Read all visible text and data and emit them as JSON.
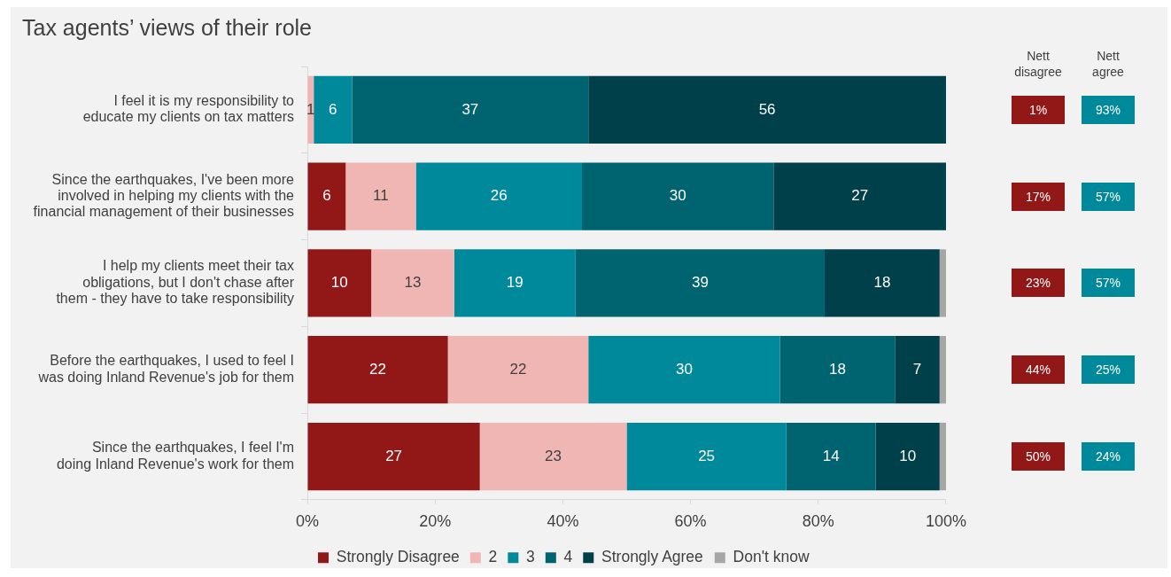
{
  "chart_data": {
    "type": "bar",
    "orientation": "horizontal",
    "stacked": true,
    "title": "Tax agents’ views of their role",
    "categories": [
      "I feel it is my responsibility to educate my clients on tax matters",
      "Since the earthquakes, I've been more involved in helping my clients with the financial management of their businesses",
      "I help my clients meet their tax obligations, but I don't chase after them - they have to take responsibility",
      "Before the earthquakes, I used to feel I was doing Inland Revenue's job for them",
      "Since the earthquakes, I feel I'm doing Inland Revenue's work for them"
    ],
    "series": [
      {
        "name": "Strongly Disagree",
        "color": "#921717",
        "values": [
          0,
          6,
          10,
          22,
          27
        ],
        "value_labels": [
          null,
          "6",
          "10",
          "22",
          "27"
        ]
      },
      {
        "name": "2",
        "color": "#f0b6b4",
        "values": [
          1,
          11,
          13,
          22,
          23
        ],
        "value_labels": [
          "1",
          "11",
          "13",
          "22",
          "23"
        ]
      },
      {
        "name": "3",
        "color": "#00899a",
        "values": [
          6,
          26,
          19,
          30,
          25
        ],
        "value_labels": [
          "6",
          "26",
          "19",
          "30",
          "25"
        ]
      },
      {
        "name": "4",
        "color": "#006470",
        "values": [
          37,
          30,
          39,
          18,
          14
        ],
        "value_labels": [
          "37",
          "30",
          "39",
          "18",
          "14"
        ]
      },
      {
        "name": "Strongly Agree",
        "color": "#00404a",
        "values": [
          56,
          27,
          18,
          7,
          10
        ],
        "value_labels": [
          "56",
          "27",
          "18",
          "7",
          "10"
        ]
      },
      {
        "name": "Don't know",
        "color": "#a6a6a6",
        "values": [
          0,
          0,
          1,
          1,
          1
        ],
        "value_labels": [
          null,
          null,
          null,
          null,
          null
        ]
      }
    ],
    "xlim": [
      0,
      100
    ],
    "xticks": [
      {
        "value": 0,
        "label": "0%"
      },
      {
        "value": 20,
        "label": "20%"
      },
      {
        "value": 40,
        "label": "40%"
      },
      {
        "value": 60,
        "label": "60%"
      },
      {
        "value": 80,
        "label": "80%"
      },
      {
        "value": 100,
        "label": "100%"
      }
    ],
    "grid": false,
    "legend": "bottom left",
    "annotations": [
      "Nett disagree",
      "Nett agree",
      "1%",
      "93%",
      "17%",
      "57%",
      "23%",
      "57%",
      "44%",
      "25%",
      "50%",
      "24%"
    ]
  }
}
